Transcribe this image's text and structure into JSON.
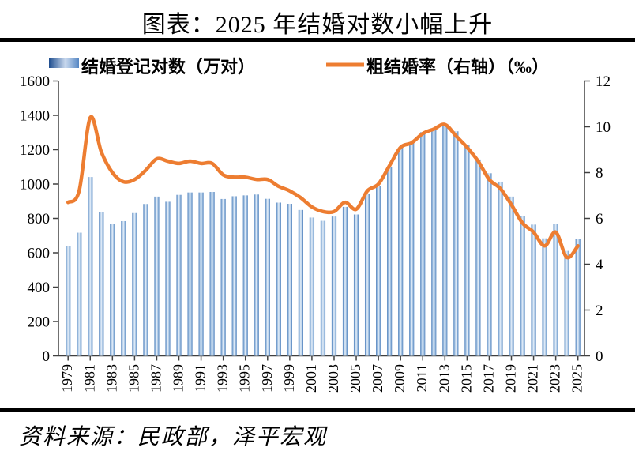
{
  "title": "图表：2025 年结婚对数小幅上升",
  "source": "资料来源：民政部，泽平宏观",
  "legend": {
    "bars": "结婚登记对数（万对）",
    "line": "粗结婚率（右轴）（‰）"
  },
  "colors": {
    "line": "#ed7d31",
    "bar_edge": "#4f81bd",
    "bar_light": "#dce9f7",
    "legend_swatch_dark": "#1f4e8f",
    "legend_swatch_light": "#c9d9ee",
    "legend_swatch_mid": "#5586c3",
    "axis": "#404040",
    "rule": "#000000"
  },
  "chart_data": {
    "type": "bar+line",
    "title": "图表：2025 年结婚对数小幅上升",
    "categories": [
      1979,
      1980,
      1981,
      1982,
      1983,
      1984,
      1985,
      1986,
      1987,
      1988,
      1989,
      1990,
      1991,
      1992,
      1993,
      1994,
      1995,
      1996,
      1997,
      1998,
      1999,
      2000,
      2001,
      2002,
      2003,
      2004,
      2005,
      2006,
      2007,
      2008,
      2009,
      2010,
      2011,
      2012,
      2013,
      2014,
      2015,
      2016,
      2017,
      2018,
      2019,
      2020,
      2021,
      2022,
      2023,
      2024,
      2025
    ],
    "x_tick_labels": [
      "1979",
      "1981",
      "1983",
      "1985",
      "1987",
      "1989",
      "1991",
      "1993",
      "1995",
      "1997",
      "1999",
      "2001",
      "2003",
      "2005",
      "2007",
      "2009",
      "2011",
      "2013",
      "2015",
      "2017",
      "2019",
      "2021",
      "2023",
      "2025"
    ],
    "series": [
      {
        "name": "结婚登记对数（万对）",
        "type": "bar",
        "axis": "left",
        "values": [
          637,
          717,
          1041,
          835,
          766,
          784,
          831,
          884,
          927,
          897,
          937,
          951,
          951,
          954,
          913,
          929,
          934,
          939,
          914,
          892,
          885,
          849,
          805,
          786,
          811,
          867,
          823,
          945,
          991,
          1098,
          1212,
          1241,
          1302,
          1324,
          1347,
          1307,
          1225,
          1143,
          1063,
          1014,
          927,
          813,
          764,
          684,
          768,
          611,
          680
        ]
      },
      {
        "name": "粗结婚率（右轴）（‰）",
        "type": "line",
        "axis": "right",
        "values": [
          6.7,
          7.2,
          10.4,
          8.9,
          8.0,
          7.6,
          7.7,
          8.1,
          8.6,
          8.5,
          8.4,
          8.5,
          8.4,
          8.4,
          7.9,
          7.8,
          7.8,
          7.7,
          7.7,
          7.4,
          7.2,
          6.9,
          6.5,
          6.3,
          6.3,
          6.7,
          6.4,
          7.2,
          7.5,
          8.3,
          9.1,
          9.3,
          9.7,
          9.9,
          10.1,
          9.6,
          9.1,
          8.5,
          7.7,
          7.3,
          6.6,
          5.8,
          5.4,
          4.8,
          5.4,
          4.3,
          4.8
        ]
      }
    ],
    "left_axis": {
      "min": 0,
      "max": 1600,
      "step": 200,
      "ticks": [
        0,
        200,
        400,
        600,
        800,
        1000,
        1200,
        1400,
        1600
      ]
    },
    "right_axis": {
      "min": 0,
      "max": 12,
      "step": 2,
      "ticks": [
        0,
        2,
        4,
        6,
        8,
        10,
        12
      ]
    },
    "grid": false,
    "legend_position": "top",
    "line_smoothing": true
  }
}
